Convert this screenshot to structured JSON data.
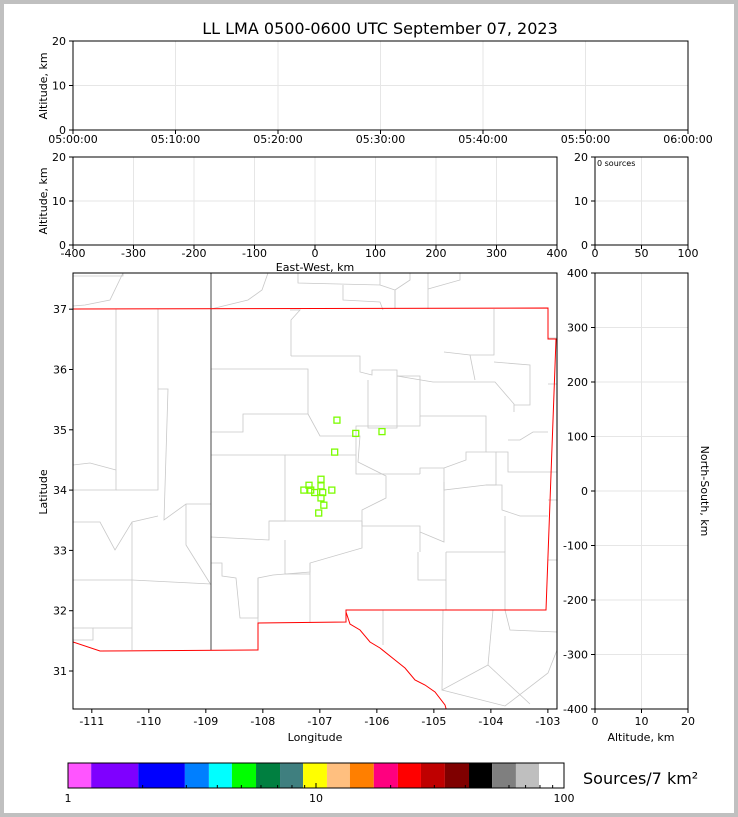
{
  "chart_data": [
    {
      "id": "time-height",
      "type": "scatter",
      "title": "LL LMA 0500-0600 UTC September 07, 2023",
      "xlabel": "",
      "ylabel": "Altitude, km",
      "xticks": [
        "05:00:00",
        "05:10:00",
        "05:20:00",
        "05:30:00",
        "05:40:00",
        "05:50:00",
        "06:00:00"
      ],
      "ylim": [
        0,
        20
      ],
      "yticks": [
        0,
        10,
        20
      ],
      "grid": true,
      "points": []
    },
    {
      "id": "ew-height",
      "type": "scatter",
      "xlabel": "East-West, km",
      "ylabel": "Altitude, km",
      "xlim": [
        -400,
        400
      ],
      "xticks": [
        -400,
        -300,
        -200,
        -100,
        0,
        100,
        200,
        300,
        400
      ],
      "ylim": [
        0,
        20
      ],
      "yticks": [
        0,
        10,
        20
      ],
      "grid": true,
      "points": []
    },
    {
      "id": "histogram",
      "type": "bar",
      "annotation": "0 sources",
      "xlim": [
        0,
        100
      ],
      "xticks": [
        0,
        50,
        100
      ],
      "ylim": [
        0,
        20
      ],
      "yticks": [
        0,
        10,
        20
      ],
      "grid": true
    },
    {
      "id": "plan-view",
      "type": "scatter",
      "xlabel": "Longitude",
      "ylabel": "Latitude",
      "xlim": [
        -111.33,
        -102.84
      ],
      "ylim": [
        30.37,
        37.6
      ],
      "xticks": [
        -111,
        -110,
        -109,
        -108,
        -107,
        -106,
        -105,
        -104,
        -103
      ],
      "yticks": [
        31,
        32,
        33,
        34,
        35,
        36,
        37
      ],
      "marker_color": "#7cfc00",
      "marker": "square-open",
      "points": [
        [
          -106.7,
          35.16
        ],
        [
          -106.37,
          34.94
        ],
        [
          -105.91,
          34.97
        ],
        [
          -106.74,
          34.63
        ],
        [
          -106.98,
          34.18
        ],
        [
          -107.19,
          34.08
        ],
        [
          -106.98,
          34.07
        ],
        [
          -107.28,
          34.0
        ],
        [
          -107.16,
          34.0
        ],
        [
          -107.09,
          33.96
        ],
        [
          -106.95,
          33.96
        ],
        [
          -106.79,
          34.0
        ],
        [
          -106.98,
          33.87
        ],
        [
          -106.93,
          33.75
        ],
        [
          -107.02,
          33.62
        ]
      ],
      "state_border_color": "#ff0000",
      "county_border_color": "#c8c8c8"
    },
    {
      "id": "ns-height",
      "type": "scatter",
      "xlabel": "Altitude, km",
      "ylabel": "North-South, km",
      "xlim": [
        0,
        20
      ],
      "xticks": [
        0,
        10,
        20
      ],
      "ylim": [
        -400,
        400
      ],
      "yticks": [
        -400,
        -300,
        -200,
        -100,
        0,
        100,
        200,
        300,
        400
      ],
      "grid": true,
      "points": []
    },
    {
      "id": "colorbar",
      "type": "colorbar",
      "label": "Sources/7 km²",
      "scale": "log",
      "lim": [
        1,
        100
      ],
      "ticks": [
        "1",
        "10",
        "100"
      ],
      "bounds": [
        1,
        1.24,
        1.92,
        2.96,
        3.7,
        4.58,
        5.73,
        7.16,
        8.87,
        11.07,
        13.7,
        17.1,
        21.4,
        26.5,
        33.1,
        41.4,
        51.3,
        64.0,
        79.3,
        100
      ],
      "colors": [
        "#ff55ff",
        "#7f00ff",
        "#0000ff",
        "#007fff",
        "#00ffff",
        "#00ff00",
        "#007f40",
        "#3f7f7f",
        "#ffff00",
        "#ffbf7f",
        "#ff7f00",
        "#ff007f",
        "#ff0000",
        "#bf0000",
        "#7f0000",
        "#000000",
        "#7f7f7f",
        "#bfbfbf",
        "#ffffff"
      ]
    }
  ]
}
